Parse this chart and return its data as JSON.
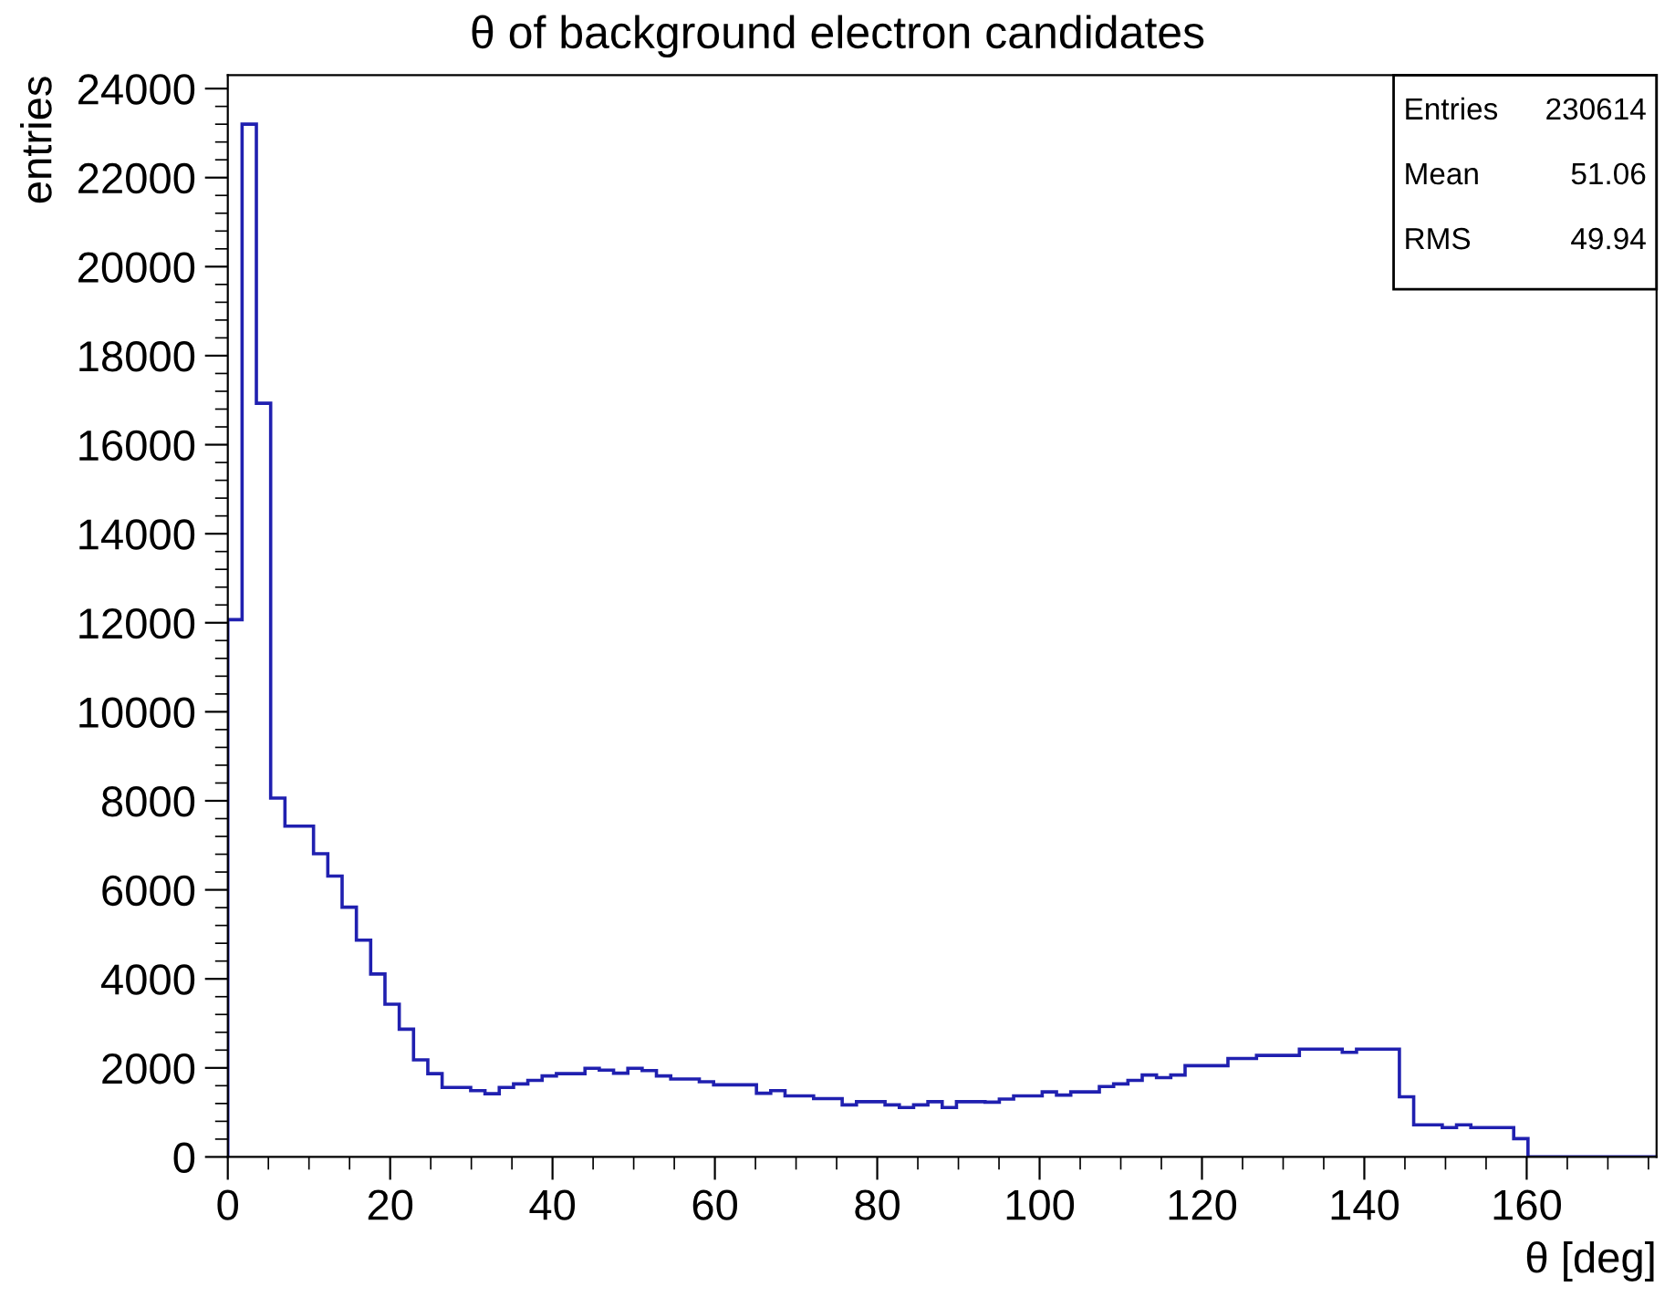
{
  "chart_data": {
    "type": "histogram",
    "title": "θ of background electron candidates",
    "xlabel": "θ [deg]",
    "ylabel": "entries",
    "annotations": [
      "Entries",
      "230614",
      "Mean",
      "51.06",
      "RMS",
      "49.94"
    ],
    "bins": [
      0,
      1.76,
      3.52,
      5.28,
      7.04,
      8.8,
      10.56,
      12.32,
      14.08,
      15.84,
      17.6,
      19.36,
      21.12,
      22.88,
      24.64,
      26.4,
      28.16,
      29.92,
      31.68,
      33.44,
      35.2,
      36.96,
      38.72,
      40.48,
      42.24,
      44,
      45.76,
      47.52,
      49.28,
      51.04,
      52.8,
      54.56,
      56.32,
      58.08,
      59.84,
      61.6,
      63.36,
      65.12,
      66.88,
      68.64,
      70.4,
      72.16,
      73.92,
      75.68,
      77.44,
      79.2,
      80.96,
      82.72,
      84.48,
      86.24,
      88,
      89.76,
      91.52,
      93.28,
      95.04,
      96.8,
      98.56,
      100.32,
      102.08,
      103.84,
      105.6,
      107.36,
      109.12,
      110.88,
      112.64,
      114.4,
      116.16,
      117.92,
      119.68,
      121.44,
      123.2,
      124.96,
      126.72,
      128.48,
      130.24,
      132,
      133.76,
      135.52,
      137.28,
      139.04,
      140.8,
      142.56,
      144.32,
      146.08,
      147.84,
      149.6,
      151.36,
      153.12,
      154.88,
      156.64,
      158.4,
      160.16,
      161.92,
      163.68,
      165.44,
      167.2,
      168.96,
      170.72,
      172.48,
      174.24,
      176
    ],
    "values": [
      12070,
      23200,
      16930,
      8060,
      7430,
      7430,
      6810,
      6310,
      5610,
      4870,
      4110,
      3430,
      2870,
      2180,
      1870,
      1560,
      1560,
      1490,
      1420,
      1560,
      1640,
      1720,
      1820,
      1870,
      1870,
      1990,
      1950,
      1880,
      1990,
      1940,
      1820,
      1750,
      1750,
      1690,
      1620,
      1620,
      1620,
      1430,
      1490,
      1370,
      1370,
      1310,
      1310,
      1170,
      1240,
      1240,
      1170,
      1110,
      1170,
      1240,
      1110,
      1240,
      1240,
      1230,
      1300,
      1370,
      1370,
      1460,
      1390,
      1460,
      1460,
      1580,
      1640,
      1720,
      1840,
      1780,
      1840,
      2050,
      2050,
      2050,
      2210,
      2210,
      2280,
      2280,
      2280,
      2420,
      2420,
      2420,
      2350,
      2420,
      2420,
      2420,
      1350,
      720,
      720,
      660,
      720,
      660,
      660,
      660,
      410,
      0,
      0,
      0,
      0,
      0,
      0,
      0,
      0,
      0
    ],
    "color": "#2020b0",
    "xlim": [
      0,
      176
    ],
    "xticks": [
      0,
      20,
      40,
      60,
      80,
      100,
      120,
      140,
      160
    ],
    "ylim": [
      0,
      24300
    ],
    "yticks": [
      0,
      2000,
      4000,
      6000,
      8000,
      10000,
      12000,
      14000,
      16000,
      18000,
      20000,
      22000,
      24000
    ],
    "grid": false
  }
}
